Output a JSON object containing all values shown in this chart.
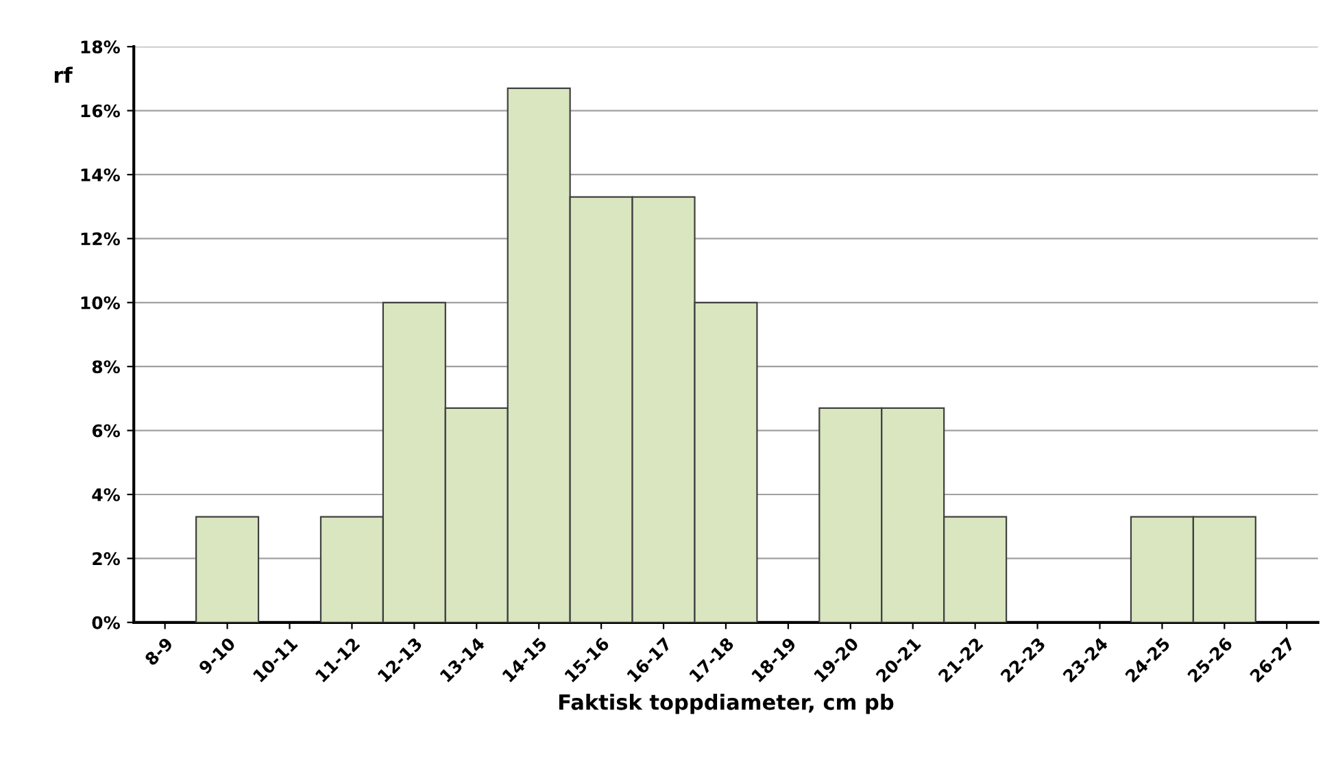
{
  "chart_data": {
    "type": "bar",
    "xlabel": "Faktisk toppdiameter, cm pb",
    "ylabel": "rf",
    "categories": [
      "8-9",
      "9-10",
      "10-11",
      "11-12",
      "12-13",
      "13-14",
      "14-15",
      "15-16",
      "16-17",
      "17-18",
      "18-19",
      "19-20",
      "20-21",
      "21-22",
      "22-23",
      "23-24",
      "24-25",
      "25-26",
      "26-27"
    ],
    "values": [
      0,
      3.3,
      0,
      3.3,
      10,
      6.7,
      16.7,
      13.3,
      13.3,
      10,
      0,
      6.7,
      6.7,
      3.3,
      0,
      0,
      3.3,
      3.3,
      0
    ],
    "color": "#d9e6c0",
    "ylim": [
      0,
      18
    ],
    "yticks": [
      {
        "value": 0,
        "label": "0%"
      },
      {
        "value": 2,
        "label": "2%"
      },
      {
        "value": 4,
        "label": "4%"
      },
      {
        "value": 6,
        "label": "6%"
      },
      {
        "value": 8,
        "label": "8%"
      },
      {
        "value": 10,
        "label": "10%"
      },
      {
        "value": 12,
        "label": "12%"
      },
      {
        "value": 14,
        "label": "14%"
      },
      {
        "value": 16,
        "label": "16%"
      },
      {
        "value": 18,
        "label": "18%"
      }
    ],
    "grid": "y"
  }
}
